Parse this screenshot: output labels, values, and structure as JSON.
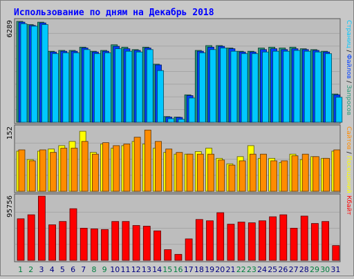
{
  "title": "Использование по дням на Декабрь 2018",
  "colors": {
    "background": "#c8c8c8",
    "plot": "#bdbdbd",
    "grid": "#a6a6a6",
    "hits": "#2a9a7a",
    "files": "#0040ff",
    "pages": "#00c8ff",
    "visits": "#ffff00",
    "sites": "#ff8c00",
    "kbytes": "#ff0000",
    "weekday_label": "#000080",
    "weekend_label": "#007f3f"
  },
  "chart_data": [
    {
      "type": "bar",
      "name": "hits-files-pages",
      "ymax_label": "6289",
      "ylim": [
        0,
        6289
      ],
      "grid": true,
      "categories": [
        "1",
        "2",
        "3",
        "4",
        "5",
        "6",
        "7",
        "8",
        "9",
        "10",
        "11",
        "12",
        "13",
        "14",
        "15",
        "16",
        "17",
        "18",
        "19",
        "20",
        "21",
        "22",
        "23",
        "24",
        "25",
        "26",
        "27",
        "28",
        "29",
        "30",
        "31"
      ],
      "weekend": [
        1,
        2,
        8,
        9,
        15,
        16,
        22,
        23,
        29,
        30
      ],
      "legend": [
        {
          "label": "Запросов",
          "color": "#2a9a7a"
        },
        {
          "label": "Файлов",
          "color": "#0040ff"
        },
        {
          "label": "Страниц",
          "color": "#00c8ff"
        }
      ],
      "legend_sep": " / ",
      "series": [
        {
          "name": "Запросов",
          "values": [
            6250,
            6050,
            6200,
            4400,
            4450,
            4450,
            4650,
            4400,
            4450,
            4800,
            4650,
            4500,
            4650,
            3600,
            350,
            320,
            1700,
            4450,
            4750,
            4750,
            4600,
            4400,
            4400,
            4600,
            4650,
            4600,
            4650,
            4550,
            4500,
            4400,
            1750
          ]
        },
        {
          "name": "Файлов",
          "values": [
            6200,
            6000,
            6150,
            4350,
            4400,
            4400,
            4600,
            4350,
            4400,
            4700,
            4550,
            4450,
            4600,
            3550,
            320,
            300,
            1650,
            4400,
            4650,
            4700,
            4550,
            4350,
            4350,
            4500,
            4550,
            4500,
            4550,
            4500,
            4450,
            4350,
            1700
          ]
        },
        {
          "name": "Страниц",
          "values": [
            6100,
            5950,
            6050,
            4250,
            4300,
            4300,
            4500,
            4250,
            4300,
            4550,
            4400,
            4350,
            4500,
            3200,
            220,
            180,
            1500,
            4300,
            4500,
            4600,
            4400,
            4250,
            4250,
            4350,
            4400,
            4400,
            4450,
            4400,
            4350,
            4250,
            1550
          ]
        }
      ]
    },
    {
      "type": "bar",
      "name": "visits-sites",
      "ymax_label": "152",
      "ylim": [
        0,
        152
      ],
      "grid": true,
      "categories": [
        "1",
        "2",
        "3",
        "4",
        "5",
        "6",
        "7",
        "8",
        "9",
        "10",
        "11",
        "12",
        "13",
        "14",
        "15",
        "16",
        "17",
        "18",
        "19",
        "20",
        "21",
        "22",
        "23",
        "24",
        "25",
        "26",
        "27",
        "28",
        "29",
        "30",
        "31"
      ],
      "legend": [
        {
          "label": "Посещений",
          "color": "#ffff00"
        },
        {
          "label": "Сайтов",
          "color": "#ff8c00"
        }
      ],
      "legend_sep": " / ",
      "series": [
        {
          "name": "Посещений",
          "values": [
            95,
            75,
            95,
            100,
            108,
            118,
            142,
            92,
            112,
            102,
            108,
            118,
            112,
            102,
            92,
            88,
            88,
            94,
            102,
            78,
            65,
            82,
            108,
            78,
            78,
            68,
            88,
            75,
            82,
            78,
            95
          ]
        },
        {
          "name": "Сайтов",
          "values": [
            98,
            72,
            98,
            92,
            102,
            102,
            118,
            88,
            115,
            108,
            112,
            128,
            145,
            118,
            100,
            92,
            88,
            88,
            88,
            74,
            62,
            72,
            88,
            88,
            72,
            72,
            84,
            88,
            82,
            78,
            98
          ]
        }
      ]
    },
    {
      "type": "bar",
      "name": "kbytes",
      "ymax_label": "95756",
      "ylim": [
        0,
        95756
      ],
      "grid": true,
      "categories": [
        "1",
        "2",
        "3",
        "4",
        "5",
        "6",
        "7",
        "8",
        "9",
        "10",
        "11",
        "12",
        "13",
        "14",
        "15",
        "16",
        "17",
        "18",
        "19",
        "20",
        "21",
        "22",
        "23",
        "24",
        "25",
        "26",
        "27",
        "28",
        "29",
        "30",
        "31"
      ],
      "legend": [
        {
          "label": "Кбайт",
          "color": "#ff0000"
        }
      ],
      "series": [
        {
          "name": "Кбайт",
          "values": [
            62000,
            68000,
            95756,
            53000,
            58000,
            77000,
            48000,
            47000,
            46000,
            58000,
            58000,
            52000,
            51000,
            44000,
            16000,
            9000,
            32000,
            61000,
            59000,
            71000,
            54000,
            57000,
            56000,
            59000,
            65000,
            68000,
            48000,
            66000,
            55000,
            58000,
            22000
          ]
        }
      ]
    }
  ]
}
